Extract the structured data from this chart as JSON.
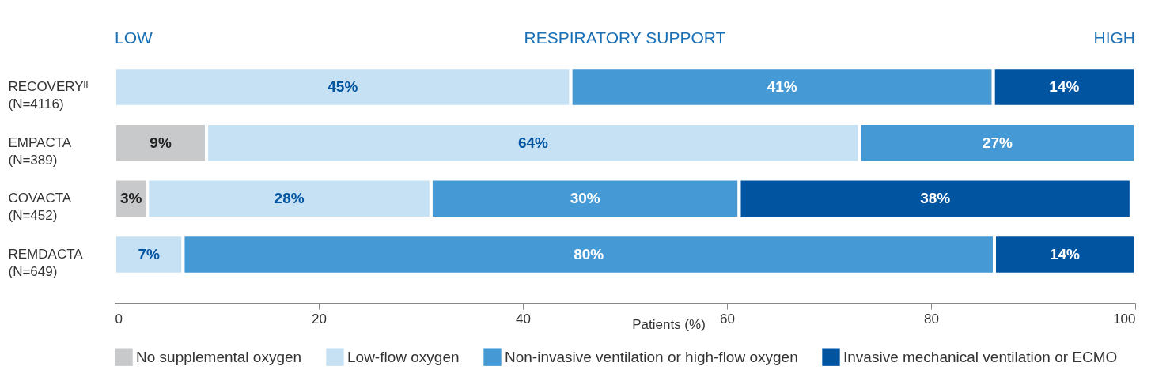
{
  "chart_data": {
    "type": "bar",
    "orientation": "horizontal",
    "stacked": true,
    "xlabel": "Patients (%)",
    "annotations": [
      "LOW",
      "RESPIRATORY SUPPORT",
      "HIGH"
    ],
    "categories": [
      "RECOVERYᴵᴵ\n(N=4116)",
      "EMPACTA\n(N=389)",
      "COVACTA\n(N=452)",
      "REMDACTA\n(N=649)"
    ],
    "series": [
      {
        "name": "No supplemental oxygen",
        "color": "#c8c9cb",
        "values": [
          null,
          9,
          3.2,
          null
        ],
        "value_labels": [
          null,
          "9%",
          "3%",
          null
        ]
      },
      {
        "name": "Low-flow oxygen",
        "color": "#c7e1f4",
        "values": [
          44.7,
          64,
          27.8,
          6.7
        ],
        "value_labels": [
          "45%",
          "64%",
          "28%",
          "7%"
        ]
      },
      {
        "name": "Non-invasive ventilation or high-flow oxygen",
        "color": "#4599d5",
        "values": [
          41.4,
          27,
          30.2,
          79.5
        ],
        "value_labels": [
          "41%",
          "27%",
          "30%",
          "80%"
        ]
      },
      {
        "name": "Invasive mechanical ventilation or ECMO",
        "color": "#0054a0",
        "values": [
          13.9,
          null,
          38.4,
          13.8
        ],
        "value_labels": [
          "14%",
          null,
          "38%",
          "14%"
        ]
      }
    ],
    "xlim": [
      0,
      100
    ],
    "xticks": [
      0,
      20,
      40,
      60,
      80,
      100
    ],
    "grid": false,
    "legend": "bottom"
  }
}
